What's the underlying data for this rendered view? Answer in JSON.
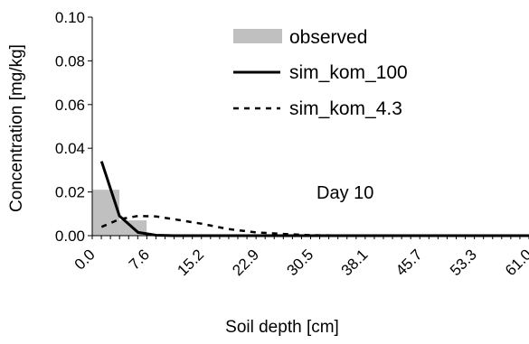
{
  "chart_data": {
    "type": "bar+line",
    "xlabel": "Soil depth [cm]",
    "ylabel": "Concentration [mg/kg]",
    "ylim": [
      0,
      0.1
    ],
    "yticks": [
      "0.00",
      "0.02",
      "0.04",
      "0.06",
      "0.08",
      "0.10"
    ],
    "xlim": [
      0,
      61.0
    ],
    "xticks": [
      "0.0",
      "7.6",
      "15.2",
      "22.9",
      "30.5",
      "38.1",
      "45.7",
      "53.3",
      "61.0"
    ],
    "annotation": "Day 10",
    "legend_position": "top-right",
    "grid": false,
    "observed": {
      "name": "observed",
      "color": "#c0c0c0",
      "bars": [
        {
          "x0": 0.0,
          "x1": 3.8,
          "value": 0.021
        },
        {
          "x0": 3.8,
          "x1": 7.6,
          "value": 0.007
        }
      ]
    },
    "series": [
      {
        "name": "sim_kom_100",
        "style": "solid",
        "color": "#000000",
        "x": [
          1.3,
          3.8,
          6.4,
          8.9,
          11.4,
          15.2,
          22.9,
          30.5,
          38.1,
          45.7,
          53.3,
          61.0
        ],
        "values": [
          0.034,
          0.009,
          0.0015,
          0.0002,
          0.0,
          0.0,
          0.0,
          0.0,
          0.0,
          0.0,
          0.0,
          0.0
        ]
      },
      {
        "name": "sim_kom_4.3",
        "style": "dashed",
        "color": "#000000",
        "x": [
          1.3,
          3.8,
          6.4,
          8.9,
          11.4,
          15.2,
          19.0,
          22.9,
          26.7,
          30.5,
          38.1,
          45.7,
          53.3,
          61.0
        ],
        "values": [
          0.004,
          0.0075,
          0.009,
          0.0088,
          0.0075,
          0.0055,
          0.003,
          0.0015,
          0.0008,
          0.0002,
          0.0,
          0.0,
          0.0,
          0.0
        ]
      }
    ]
  }
}
